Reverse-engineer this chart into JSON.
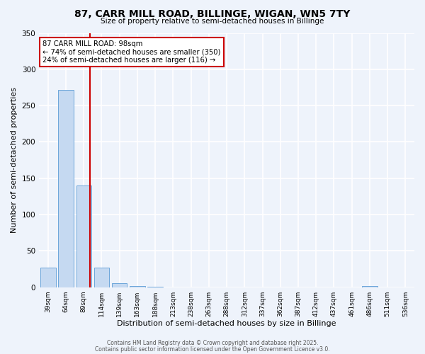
{
  "title": "87, CARR MILL ROAD, BILLINGE, WIGAN, WN5 7TY",
  "subtitle": "Size of property relative to semi-detached houses in Billinge",
  "xlabel": "Distribution of semi-detached houses by size in Billinge",
  "ylabel": "Number of semi-detached properties",
  "bar_labels": [
    "39sqm",
    "64sqm",
    "89sqm",
    "114sqm",
    "139sqm",
    "163sqm",
    "188sqm",
    "213sqm",
    "238sqm",
    "263sqm",
    "288sqm",
    "312sqm",
    "337sqm",
    "362sqm",
    "387sqm",
    "412sqm",
    "437sqm",
    "461sqm",
    "486sqm",
    "511sqm",
    "536sqm"
  ],
  "bar_values": [
    27,
    272,
    140,
    27,
    6,
    2,
    1,
    0,
    0,
    0,
    0,
    0,
    0,
    0,
    0,
    0,
    0,
    0,
    2,
    0,
    0
  ],
  "bar_color": "#c5d9f1",
  "bar_edge_color": "#5b9bd5",
  "background_color": "#eef3fb",
  "grid_color": "#ffffff",
  "vline_color": "#cc0000",
  "annotation_title": "87 CARR MILL ROAD: 98sqm",
  "annotation_line1": "← 74% of semi-detached houses are smaller (350)",
  "annotation_line2": "24% of semi-detached houses are larger (116) →",
  "annotation_box_color": "#ffffff",
  "annotation_box_edge": "#cc0000",
  "ylim": [
    0,
    350
  ],
  "yticks": [
    0,
    50,
    100,
    150,
    200,
    250,
    300,
    350
  ],
  "footer1": "Contains HM Land Registry data © Crown copyright and database right 2025.",
  "footer2": "Contains public sector information licensed under the Open Government Licence v3.0.",
  "figsize": [
    6.0,
    5.0
  ],
  "dpi": 100
}
